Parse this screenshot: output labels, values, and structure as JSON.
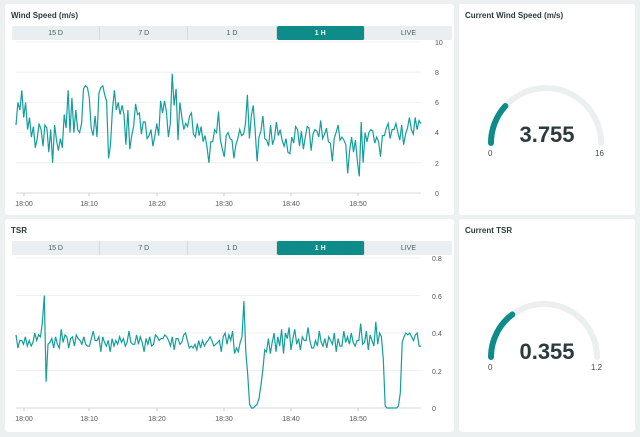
{
  "colors": {
    "accent": "#0e8c8a",
    "background": "#edf0f1",
    "text": "#2b3a3d",
    "track": "#e9eef0"
  },
  "tabs": [
    "15 D",
    "7 D",
    "1 D",
    "1 H",
    "LIVE"
  ],
  "active_tab": "1 H",
  "wind_chart": {
    "title": "Wind Speed (m/s)",
    "y_ticks": [
      "10",
      "8",
      "6",
      "4",
      "2",
      "0"
    ],
    "x_ticks": [
      "18:00",
      "18:10",
      "18:20",
      "18:30",
      "18:40",
      "18:50"
    ]
  },
  "tsr_chart": {
    "title": "TSR",
    "y_ticks": [
      "0.8",
      "0.6",
      "0.4",
      "0.2",
      "0"
    ],
    "x_ticks": [
      "18:00",
      "18:10",
      "18:20",
      "18:30",
      "18:40",
      "18:50"
    ]
  },
  "wind_gauge": {
    "title": "Current Wind Speed (m/s)",
    "value": "3.755",
    "min": "0",
    "max": "16",
    "fraction": 0.2347
  },
  "tsr_gauge": {
    "title": "Current TSR",
    "value": "0.355",
    "min": "0",
    "max": "1.2",
    "fraction": 0.2958
  },
  "chart_data": [
    {
      "type": "line",
      "title": "Wind Speed (m/s)",
      "xlabel": "",
      "ylabel": "",
      "ylim": [
        0,
        10
      ],
      "x_tick_labels": [
        "18:00",
        "18:10",
        "18:20",
        "18:30",
        "18:40",
        "18:50"
      ],
      "grid": true,
      "series": [
        {
          "values": [
            4.5,
            6,
            5.5,
            6.8,
            5,
            6,
            4.2,
            5,
            3.7,
            4.4,
            3,
            3.6,
            4.6,
            4.2,
            3.1,
            4.5,
            4.3,
            2.7,
            4.2,
            2,
            4.5,
            3.5,
            2.8,
            3.6,
            3,
            5.2,
            4.3,
            6.8,
            4,
            6.3,
            4,
            5.5,
            4.2,
            4,
            4.6,
            6.9,
            7.1,
            7,
            6.3,
            4.3,
            3.8,
            5.1,
            3.7,
            6.6,
            7,
            7.1,
            6.5,
            6.1,
            2.3,
            3.2,
            5.5,
            6.8,
            5.5,
            6,
            5.2,
            5.8,
            5.2,
            3.2,
            5.5,
            2.9,
            3.8,
            4.4,
            5.9,
            5.2,
            5.3,
            3.9,
            4.7,
            4.7,
            3.6,
            3.8,
            4.2,
            3.1,
            3.8,
            4.6,
            3.8,
            6.1,
            5.3,
            6.1,
            5.4,
            3.7,
            4.6,
            7.9,
            5.8,
            6.9,
            3.5,
            6,
            5,
            4.2,
            4.6,
            4.4,
            5.1,
            5.3,
            3.9,
            3.7,
            4.6,
            3.8,
            4.4,
            3.4,
            3.8,
            3.1,
            2,
            3.4,
            3.4,
            4.2,
            4,
            5.4,
            3.5,
            2.9,
            2.4,
            3.8,
            4,
            3.6,
            3.5,
            2.3,
            3.2,
            3.6,
            4.2,
            3.8,
            3.9,
            4.6,
            6.5,
            3.6,
            5.1,
            5.8,
            4.2,
            2.1,
            3.7,
            4.1,
            5.1,
            3.6,
            3.5,
            3.1,
            4.5,
            3.2,
            3.6,
            4.7,
            3.8,
            4.2,
            3.5,
            3.1,
            3.6,
            2.7,
            2.6,
            3.7,
            3.3,
            4.4,
            4.2,
            3.1,
            4.1,
            2.9,
            3.7,
            4.4,
            4.3,
            2.8,
            3.9,
            4.2,
            4.1,
            3.7,
            4.8,
            3.6,
            3.9,
            4.3,
            3.4,
            3.3,
            2.1,
            3.6,
            4,
            4.5,
            3.5,
            3.7,
            3.5,
            3.2,
            1.3,
            2.8,
            3.7,
            2.7,
            3.5,
            2.1,
            1.1,
            4.7,
            2,
            4,
            3.4,
            4,
            4.2,
            4.1,
            3.3,
            3.7,
            3.4,
            2.4,
            3.8,
            3.8,
            4.3,
            4.6,
            3.6,
            4.2,
            4.2,
            4.6,
            4,
            3.5,
            4.5,
            3.2,
            3.9,
            4.3,
            5,
            4.2,
            3.9,
            5,
            4.2,
            4.8,
            4.6
          ]
        }
      ]
    },
    {
      "type": "line",
      "title": "TSR",
      "xlabel": "",
      "ylabel": "",
      "ylim": [
        0,
        0.8
      ],
      "x_tick_labels": [
        "18:00",
        "18:10",
        "18:20",
        "18:30",
        "18:40",
        "18:50"
      ],
      "grid": true,
      "series": [
        {
          "values": [
            0.39,
            0.32,
            0.36,
            0.36,
            0.34,
            0.38,
            0.33,
            0.36,
            0.33,
            0.35,
            0.4,
            0.36,
            0.39,
            0.38,
            0.46,
            0.6,
            0.14,
            0.34,
            0.35,
            0.37,
            0.32,
            0.38,
            0.34,
            0.32,
            0.42,
            0.35,
            0.39,
            0.38,
            0.32,
            0.37,
            0.38,
            0.33,
            0.39,
            0.37,
            0.36,
            0.34,
            0.38,
            0.34,
            0.33,
            0.33,
            0.37,
            0.41,
            0.36,
            0.36,
            0.38,
            0.3,
            0.38,
            0.35,
            0.33,
            0.36,
            0.3,
            0.37,
            0.33,
            0.36,
            0.34,
            0.38,
            0.35,
            0.37,
            0.33,
            0.35,
            0.41,
            0.35,
            0.34,
            0.34,
            0.39,
            0.34,
            0.38,
            0.35,
            0.3,
            0.37,
            0.34,
            0.38,
            0.33,
            0.34,
            0.39,
            0.38,
            0.36,
            0.37,
            0.37,
            0.39,
            0.38,
            0.36,
            0.33,
            0.38,
            0.31,
            0.37,
            0.37,
            0.34,
            0.35,
            0.39,
            0.4,
            0.36,
            0.32,
            0.33,
            0.32,
            0.34,
            0.31,
            0.36,
            0.32,
            0.36,
            0.33,
            0.35,
            0.36,
            0.38,
            0.36,
            0.33,
            0.34,
            0.35,
            0.36,
            0.3,
            0.38,
            0.4,
            0.34,
            0.39,
            0.36,
            0.41,
            0.29,
            0.32,
            0.3,
            0.35,
            0.38,
            0.57,
            0.3,
            0.18,
            0.02,
            0,
            0,
            0.01,
            0.02,
            0.05,
            0.12,
            0.2,
            0.31,
            0.3,
            0.37,
            0.29,
            0.35,
            0.4,
            0.3,
            0.38,
            0.33,
            0.42,
            0.29,
            0.4,
            0.37,
            0.43,
            0.31,
            0.37,
            0.42,
            0.34,
            0.37,
            0.31,
            0.38,
            0.36,
            0.36,
            0.43,
            0.36,
            0.32,
            0.32,
            0.36,
            0.33,
            0.41,
            0.35,
            0.33,
            0.37,
            0.32,
            0.38,
            0.36,
            0.34,
            0.4,
            0.3,
            0.37,
            0.33,
            0.33,
            0.41,
            0.35,
            0.38,
            0.34,
            0.4,
            0.35,
            0.33,
            0.36,
            0.36,
            0.45,
            0.34,
            0.35,
            0.41,
            0.31,
            0.39,
            0.36,
            0.33,
            0.46,
            0.34,
            0.4,
            0.38,
            0.26,
            0.01,
            0,
            0,
            0,
            0,
            0,
            0,
            0.01,
            0.08,
            0.35,
            0.38,
            0.4,
            0.39,
            0.4,
            0.38,
            0.36,
            0.39,
            0.4,
            0.33,
            0.33
          ]
        }
      ]
    }
  ]
}
